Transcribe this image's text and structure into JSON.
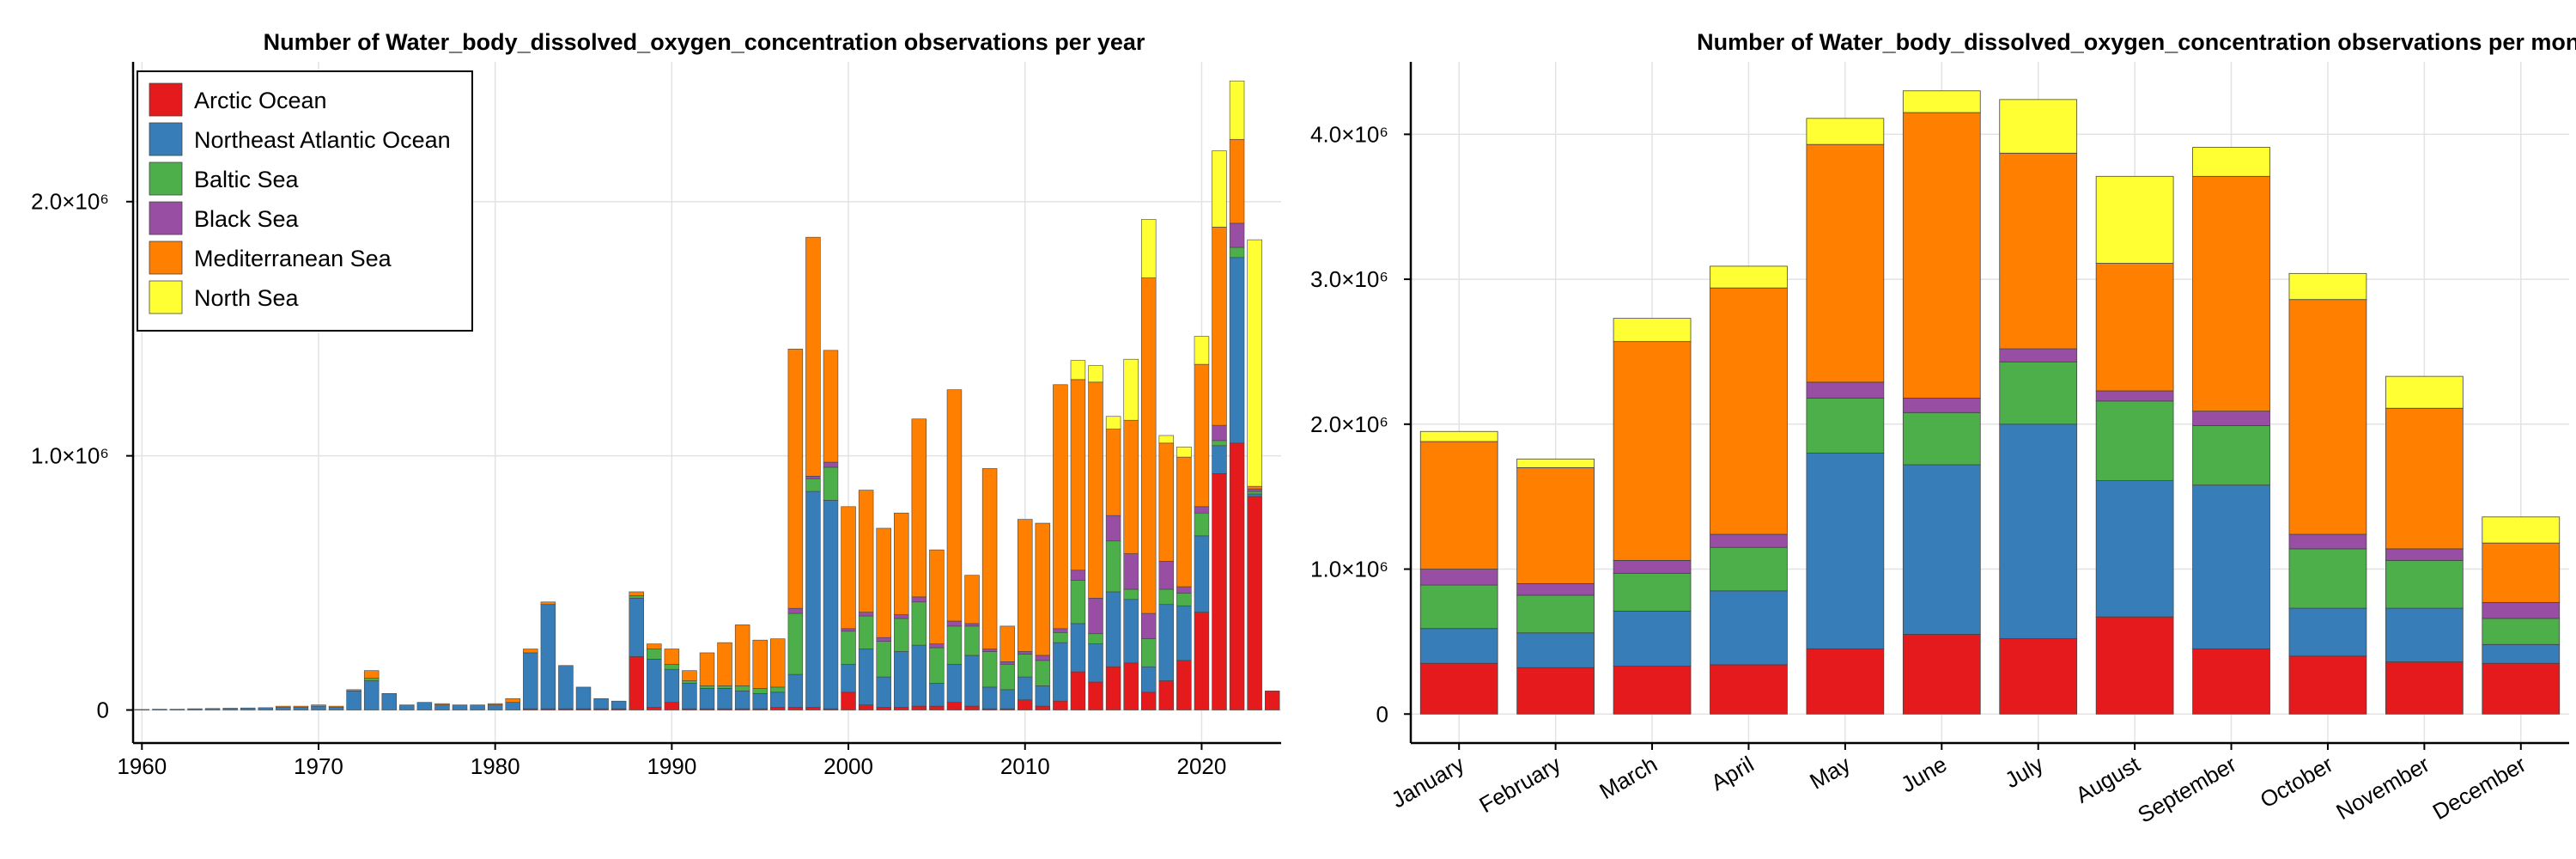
{
  "colors": {
    "Arctic Ocean": "#e41a1c",
    "Northeast Atlantic Ocean": "#377eb8",
    "Baltic Sea": "#4daf4a",
    "Black Sea": "#984ea3",
    "Mediterranean Sea": "#ff7f00",
    "North Sea": "#ffff33"
  },
  "chart_data": [
    {
      "type": "bar",
      "stacked": true,
      "title": "Number of Water_body_dissolved_oxygen_concentration observations per year",
      "xlabel": "",
      "ylabel": "",
      "xlim": [
        1959.5,
        2024.5
      ],
      "ylim": [
        -130000,
        2550000
      ],
      "x_ticks": [
        1960,
        1970,
        1980,
        1990,
        2000,
        2010,
        2020
      ],
      "x_tick_labels": [
        "1960",
        "1970",
        "1980",
        "1990",
        "2000",
        "2010",
        "2020"
      ],
      "y_ticks": [
        0,
        1000000,
        2000000
      ],
      "y_tick_labels": [
        "0",
        "1.0×10⁶",
        "2.0×10⁶"
      ],
      "grid": true,
      "legend_position": "top-left",
      "legend": [
        "Arctic Ocean",
        "Northeast Atlantic Ocean",
        "Baltic Sea",
        "Black Sea",
        "Mediterranean Sea",
        "North Sea"
      ],
      "categories": [
        1960,
        1961,
        1962,
        1963,
        1964,
        1965,
        1966,
        1967,
        1968,
        1969,
        1970,
        1971,
        1972,
        1973,
        1974,
        1975,
        1976,
        1977,
        1978,
        1979,
        1980,
        1981,
        1982,
        1983,
        1984,
        1985,
        1986,
        1987,
        1988,
        1989,
        1990,
        1991,
        1992,
        1993,
        1994,
        1995,
        1996,
        1997,
        1998,
        1999,
        2000,
        2001,
        2002,
        2003,
        2004,
        2005,
        2006,
        2007,
        2008,
        2009,
        2010,
        2011,
        2012,
        2013,
        2014,
        2015,
        2016,
        2017,
        2018,
        2019,
        2020,
        2021,
        2022,
        2023,
        2024
      ],
      "series": [
        {
          "name": "Arctic Ocean",
          "values": [
            0,
            0,
            0,
            0,
            0,
            0,
            0,
            0,
            0,
            0,
            0,
            0,
            0,
            0,
            0,
            0,
            0,
            0,
            0,
            0,
            0,
            0,
            5000,
            5000,
            5000,
            5000,
            5000,
            5000,
            210000,
            10000,
            30000,
            5000,
            5000,
            5000,
            5000,
            5000,
            10000,
            10000,
            10000,
            5000,
            70000,
            20000,
            10000,
            10000,
            15000,
            15000,
            30000,
            15000,
            5000,
            5000,
            40000,
            15000,
            35000,
            150000,
            110000,
            170000,
            185000,
            70000,
            115000,
            195000,
            385000,
            930000,
            1050000,
            840000,
            75000
          ]
        },
        {
          "name": "Northeast Atlantic Ocean",
          "values": [
            2000,
            3000,
            3000,
            5000,
            6000,
            7000,
            8000,
            9000,
            10000,
            10000,
            15000,
            10000,
            75000,
            115000,
            65000,
            20000,
            30000,
            20000,
            20000,
            20000,
            20000,
            30000,
            220000,
            410000,
            170000,
            85000,
            40000,
            30000,
            230000,
            190000,
            130000,
            100000,
            80000,
            80000,
            70000,
            60000,
            60000,
            130000,
            850000,
            820000,
            110000,
            220000,
            120000,
            220000,
            240000,
            90000,
            150000,
            200000,
            85000,
            75000,
            90000,
            80000,
            230000,
            190000,
            150000,
            295000,
            250000,
            100000,
            300000,
            215000,
            300000,
            110000,
            730000,
            10000,
            0
          ]
        },
        {
          "name": "Baltic Sea",
          "values": [
            0,
            0,
            0,
            0,
            0,
            0,
            0,
            0,
            0,
            0,
            0,
            0,
            0,
            10000,
            0,
            0,
            0,
            0,
            0,
            0,
            0,
            0,
            0,
            0,
            0,
            0,
            0,
            0,
            10000,
            40000,
            20000,
            10000,
            10000,
            10000,
            20000,
            20000,
            20000,
            240000,
            50000,
            130000,
            130000,
            130000,
            140000,
            130000,
            170000,
            140000,
            150000,
            115000,
            140000,
            100000,
            90000,
            100000,
            40000,
            170000,
            40000,
            200000,
            40000,
            110000,
            60000,
            50000,
            90000,
            20000,
            40000,
            10000,
            0
          ]
        },
        {
          "name": "Black Sea",
          "values": [
            0,
            0,
            0,
            0,
            0,
            0,
            0,
            0,
            0,
            0,
            0,
            0,
            0,
            0,
            0,
            0,
            0,
            0,
            0,
            0,
            0,
            0,
            0,
            0,
            0,
            0,
            0,
            0,
            0,
            0,
            0,
            0,
            0,
            0,
            0,
            0,
            0,
            20000,
            10000,
            20000,
            10000,
            15000,
            15000,
            15000,
            20000,
            15000,
            20000,
            10000,
            10000,
            10000,
            10000,
            20000,
            15000,
            40000,
            140000,
            100000,
            140000,
            100000,
            110000,
            25000,
            25000,
            60000,
            95000,
            10000,
            0
          ]
        },
        {
          "name": "Mediterranean Sea",
          "values": [
            0,
            0,
            0,
            0,
            0,
            0,
            0,
            0,
            5000,
            5000,
            5000,
            5000,
            5000,
            30000,
            0,
            0,
            0,
            5000,
            0,
            0,
            5000,
            15000,
            15000,
            10000,
            0,
            0,
            0,
            0,
            15000,
            20000,
            60000,
            40000,
            130000,
            170000,
            240000,
            190000,
            190000,
            1020000,
            940000,
            440000,
            480000,
            480000,
            430000,
            400000,
            700000,
            370000,
            910000,
            190000,
            710000,
            140000,
            520000,
            520000,
            960000,
            750000,
            850000,
            340000,
            525000,
            1320000,
            465000,
            510000,
            560000,
            780000,
            330000,
            10000,
            0
          ]
        },
        {
          "name": "North Sea",
          "values": [
            0,
            0,
            0,
            0,
            0,
            0,
            0,
            0,
            0,
            0,
            0,
            0,
            0,
            0,
            0,
            0,
            0,
            0,
            0,
            0,
            0,
            0,
            0,
            0,
            0,
            0,
            0,
            0,
            0,
            0,
            0,
            0,
            0,
            0,
            0,
            0,
            0,
            0,
            0,
            0,
            0,
            0,
            0,
            0,
            0,
            0,
            0,
            0,
            0,
            0,
            0,
            0,
            0,
            75000,
            65000,
            50000,
            240000,
            230000,
            30000,
            40000,
            110000,
            300000,
            230000,
            970000,
            0
          ]
        }
      ]
    },
    {
      "type": "bar",
      "stacked": true,
      "title": "Number of Water_body_dissolved_oxygen_concentration observations per month",
      "xlabel": "",
      "ylabel": "",
      "ylim": [
        -200000,
        4500000
      ],
      "y_ticks": [
        0,
        1000000,
        2000000,
        3000000,
        4000000
      ],
      "y_tick_labels": [
        "0",
        "1.0×10⁶",
        "2.0×10⁶",
        "3.0×10⁶",
        "4.0×10⁶"
      ],
      "grid": true,
      "categories": [
        "January",
        "February",
        "March",
        "April",
        "May",
        "June",
        "July",
        "August",
        "September",
        "October",
        "November",
        "December"
      ],
      "series": [
        {
          "name": "Arctic Ocean",
          "values": [
            350000,
            320000,
            330000,
            340000,
            450000,
            550000,
            520000,
            670000,
            450000,
            400000,
            360000,
            350000
          ]
        },
        {
          "name": "Northeast Atlantic Ocean",
          "values": [
            240000,
            240000,
            380000,
            510000,
            1350000,
            1170000,
            1480000,
            940000,
            1130000,
            330000,
            370000,
            130000
          ]
        },
        {
          "name": "Baltic Sea",
          "values": [
            300000,
            260000,
            260000,
            300000,
            380000,
            360000,
            430000,
            550000,
            410000,
            410000,
            330000,
            180000
          ]
        },
        {
          "name": "Black Sea",
          "values": [
            110000,
            80000,
            90000,
            90000,
            110000,
            100000,
            90000,
            70000,
            100000,
            100000,
            80000,
            110000
          ]
        },
        {
          "name": "Mediterranean Sea",
          "values": [
            880000,
            800000,
            1510000,
            1700000,
            1640000,
            1970000,
            1350000,
            880000,
            1620000,
            1620000,
            970000,
            410000
          ]
        },
        {
          "name": "North Sea",
          "values": [
            70000,
            60000,
            160000,
            150000,
            180000,
            150000,
            370000,
            600000,
            200000,
            180000,
            220000,
            180000
          ]
        }
      ]
    }
  ]
}
